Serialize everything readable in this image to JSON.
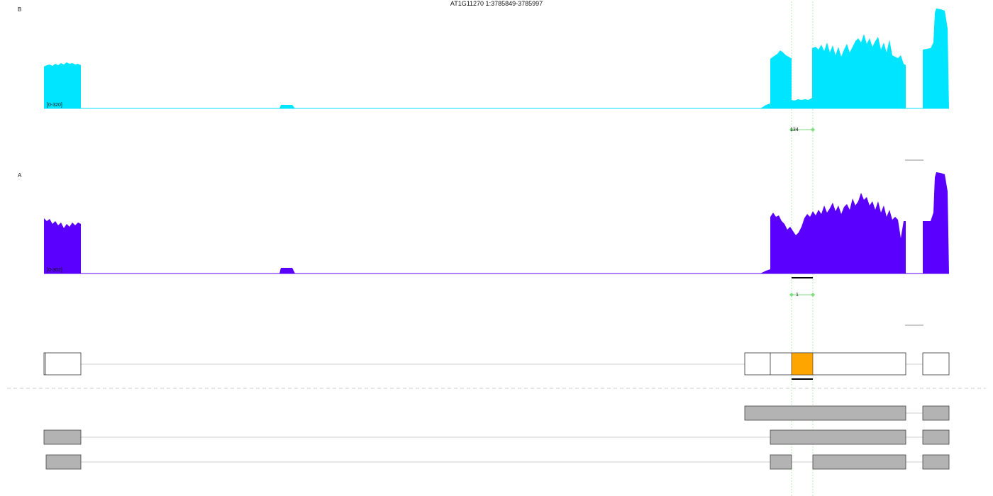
{
  "title": "AT1G11270 1:3785849-3785997",
  "colors": {
    "panel_b": "#00e5ff",
    "panel_a": "#5a00ff",
    "junction": "#7ddc7d",
    "highlight_exon": "#ffa500",
    "transcript_fill": "#b3b3b3",
    "guide_line": "#a6e8a6"
  },
  "panels": [
    {
      "label": "B",
      "range": "[0-320]",
      "junction_count": "134"
    },
    {
      "label": "A",
      "range": "[0-302]",
      "junction_count": "1"
    }
  ],
  "transcripts_count": 3
}
